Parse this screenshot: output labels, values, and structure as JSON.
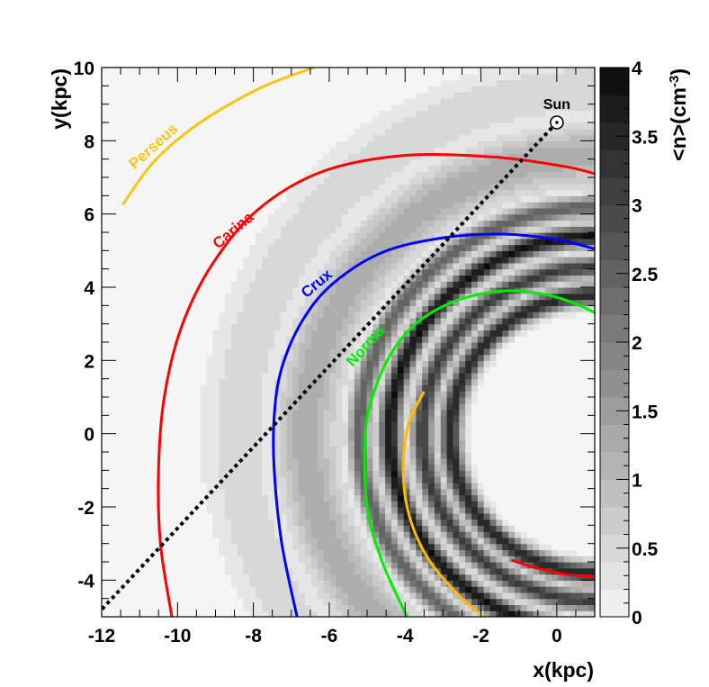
{
  "chart_data": {
    "type": "heatmap",
    "title": "",
    "xlabel": "x(kpc)",
    "ylabel": "y(kpc)",
    "colorbar_label": "<n>(cm",
    "colorbar_label_sup": "-3",
    "colorbar_label_close": ")",
    "xlim": [
      -12,
      1
    ],
    "ylim": [
      -5,
      10
    ],
    "x_ticks": [
      "-12",
      "-10",
      "-8",
      "-6",
      "-4",
      "-2",
      "0"
    ],
    "y_ticks": [
      "-4",
      "-2",
      "0",
      "2",
      "4",
      "6",
      "8",
      "10"
    ],
    "colorbar_range": [
      0,
      4
    ],
    "colorbar_ticks": [
      "0",
      "0.5",
      "1",
      "1.5",
      "2",
      "2.5",
      "3",
      "3.5",
      "4"
    ],
    "colormap": "grayscale, white = 0, black = 4",
    "density_field": {
      "galactic_center": [
        1.0,
        0.0
      ],
      "central_hole_radius_kpc": 3.0,
      "rings": [
        {
          "radius_kpc": 3.8,
          "density": 3.6
        },
        {
          "radius_kpc": 4.55,
          "density": 3.2
        },
        {
          "radius_kpc": 5.4,
          "density": 3.9
        },
        {
          "radius_kpc": 6.2,
          "density": 2.6
        },
        {
          "radius_kpc": 7.6,
          "density": 1.3
        },
        {
          "radius_kpc": 9.4,
          "density": 0.6
        }
      ]
    },
    "arms": [
      {
        "name": "Perseus",
        "color": "#f5c518",
        "label": "Perseus",
        "points": [
          [
            -11.45,
            6.25
          ],
          [
            -10.6,
            7.45
          ],
          [
            -9.4,
            8.5
          ],
          [
            -7.8,
            9.45
          ],
          [
            -6.4,
            10.0
          ]
        ]
      },
      {
        "name": "Carina",
        "color": "#ff0000",
        "label": "Carina",
        "points": [
          [
            -10.15,
            -5.0
          ],
          [
            -10.45,
            -3.0
          ],
          [
            -10.5,
            -1.0
          ],
          [
            -10.35,
            1.0
          ],
          [
            -9.9,
            2.9
          ],
          [
            -9.1,
            4.6
          ],
          [
            -7.9,
            6.1
          ],
          [
            -6.2,
            7.15
          ],
          [
            -4.0,
            7.6
          ],
          [
            -1.6,
            7.55
          ],
          [
            0.2,
            7.3
          ],
          [
            1.0,
            7.1
          ]
        ]
      },
      {
        "name": "Crux",
        "color": "#0000ff",
        "label": "Crux",
        "points": [
          [
            -6.85,
            -5.0
          ],
          [
            -7.25,
            -3.0
          ],
          [
            -7.45,
            -1.0
          ],
          [
            -7.45,
            0.5
          ],
          [
            -7.25,
            1.8
          ],
          [
            -6.7,
            3.1
          ],
          [
            -5.9,
            4.1
          ],
          [
            -4.6,
            4.95
          ],
          [
            -3.0,
            5.35
          ],
          [
            -1.4,
            5.45
          ],
          [
            0.0,
            5.3
          ],
          [
            1.0,
            5.05
          ]
        ]
      },
      {
        "name": "Norma",
        "color": "#00ee00",
        "label": "Norma",
        "points": [
          [
            -3.95,
            -5.0
          ],
          [
            -4.6,
            -3.5
          ],
          [
            -5.0,
            -2.0
          ],
          [
            -5.05,
            0.0
          ],
          [
            -4.8,
            1.2
          ],
          [
            -4.3,
            2.3
          ],
          [
            -3.6,
            3.1
          ],
          [
            -2.6,
            3.65
          ],
          [
            -1.4,
            3.9
          ],
          [
            -0.3,
            3.8
          ],
          [
            0.5,
            3.55
          ],
          [
            1.0,
            3.3
          ]
        ]
      },
      {
        "name": "Norma-inner",
        "color": "#ffbb00",
        "label": "",
        "points": [
          [
            -3.5,
            1.15
          ],
          [
            -3.9,
            0.3
          ],
          [
            -4.05,
            -0.9
          ],
          [
            -3.9,
            -2.2
          ],
          [
            -3.4,
            -3.4
          ],
          [
            -2.6,
            -4.4
          ],
          [
            -2.05,
            -4.9
          ],
          [
            -1.95,
            -5.0
          ]
        ]
      },
      {
        "name": "Carina-inner",
        "color": "#ff0000",
        "label": "",
        "points": [
          [
            -1.2,
            -3.45
          ],
          [
            -0.6,
            -3.65
          ],
          [
            0.1,
            -3.82
          ],
          [
            0.6,
            -3.88
          ],
          [
            1.0,
            -3.9
          ]
        ]
      }
    ],
    "sun": {
      "label": "Sun",
      "x": 0.0,
      "y": 8.5
    },
    "line_of_sight": {
      "from": [
        0.0,
        8.5
      ],
      "to": [
        -12.0,
        -4.8
      ],
      "style": "dotted",
      "color": "#000000"
    }
  }
}
